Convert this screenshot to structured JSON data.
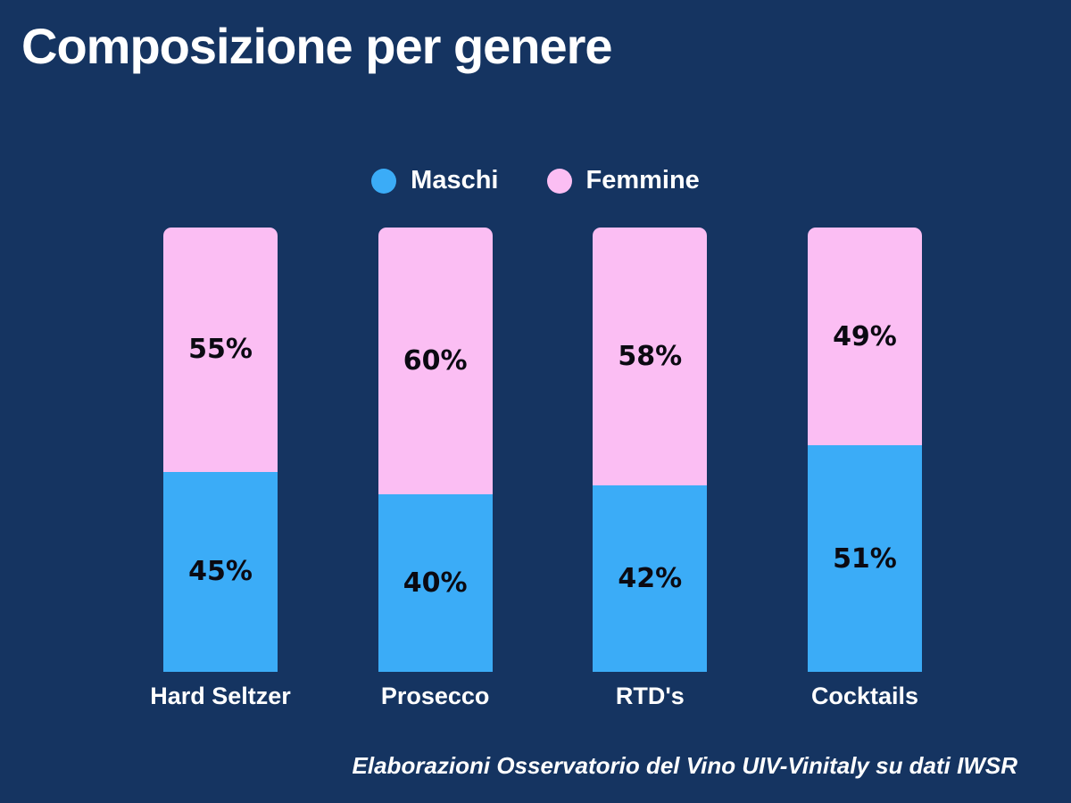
{
  "page": {
    "title": "Composizione per genere",
    "source_note": "Elaborazioni Osservatorio del Vino UIV-Vinitaly su dati IWSR",
    "background_color": "#153461"
  },
  "legend": {
    "items": [
      {
        "label": "Maschi",
        "color": "#3bacf7"
      },
      {
        "label": "Femmine",
        "color": "#fbbef3"
      }
    ]
  },
  "chart_data": {
    "type": "bar",
    "stacked": true,
    "orientation": "vertical",
    "title": "Composizione per genere",
    "categories": [
      "Hard Seltzer",
      "Prosecco",
      "RTD's",
      "Cocktails"
    ],
    "series": [
      {
        "name": "Maschi",
        "color": "#3bacf7",
        "position": "bottom",
        "values": [
          45,
          40,
          42,
          51
        ],
        "labels": [
          "45%",
          "40%",
          "42%",
          "51%"
        ]
      },
      {
        "name": "Femmine",
        "color": "#fbbef3",
        "position": "top",
        "values": [
          55,
          60,
          58,
          49
        ],
        "labels": [
          "55%",
          "60%",
          "58%",
          "49%"
        ]
      }
    ],
    "ylim": [
      0,
      100
    ],
    "unit": "%",
    "grid": false,
    "legend_position": "top-center",
    "value_label_color": "#0b0a12",
    "source": "Elaborazioni Osservatorio del Vino UIV-Vinitaly su dati IWSR"
  }
}
